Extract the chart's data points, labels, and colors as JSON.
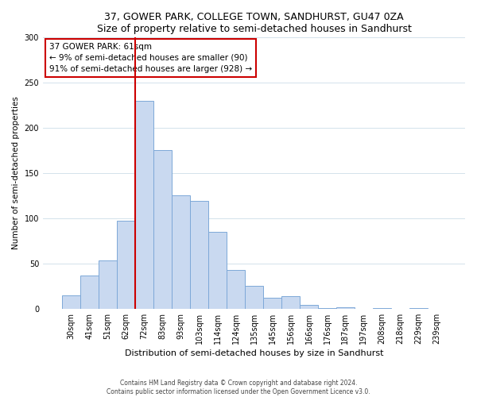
{
  "title": "37, GOWER PARK, COLLEGE TOWN, SANDHURST, GU47 0ZA",
  "subtitle": "Size of property relative to semi-detached houses in Sandhurst",
  "xlabel": "Distribution of semi-detached houses by size in Sandhurst",
  "ylabel": "Number of semi-detached properties",
  "bar_labels": [
    "30sqm",
    "41sqm",
    "51sqm",
    "62sqm",
    "72sqm",
    "83sqm",
    "93sqm",
    "103sqm",
    "114sqm",
    "124sqm",
    "135sqm",
    "145sqm",
    "156sqm",
    "166sqm",
    "176sqm",
    "187sqm",
    "197sqm",
    "208sqm",
    "218sqm",
    "229sqm",
    "239sqm"
  ],
  "bar_values": [
    15,
    37,
    53,
    97,
    230,
    175,
    125,
    119,
    85,
    43,
    25,
    12,
    14,
    4,
    1,
    2,
    0,
    1,
    0,
    1,
    0
  ],
  "bar_color": "#c9d9f0",
  "bar_edge_color": "#7da8d8",
  "vline_color": "#cc0000",
  "vline_index": 3.5,
  "annotation_title": "37 GOWER PARK: 61sqm",
  "annotation_line1": "← 9% of semi-detached houses are smaller (90)",
  "annotation_line2": "91% of semi-detached houses are larger (928) →",
  "annotation_box_color": "#cc0000",
  "ylim": [
    0,
    300
  ],
  "yticks": [
    0,
    50,
    100,
    150,
    200,
    250,
    300
  ],
  "footer1": "Contains HM Land Registry data © Crown copyright and database right 2024.",
  "footer2": "Contains public sector information licensed under the Open Government Licence v3.0."
}
